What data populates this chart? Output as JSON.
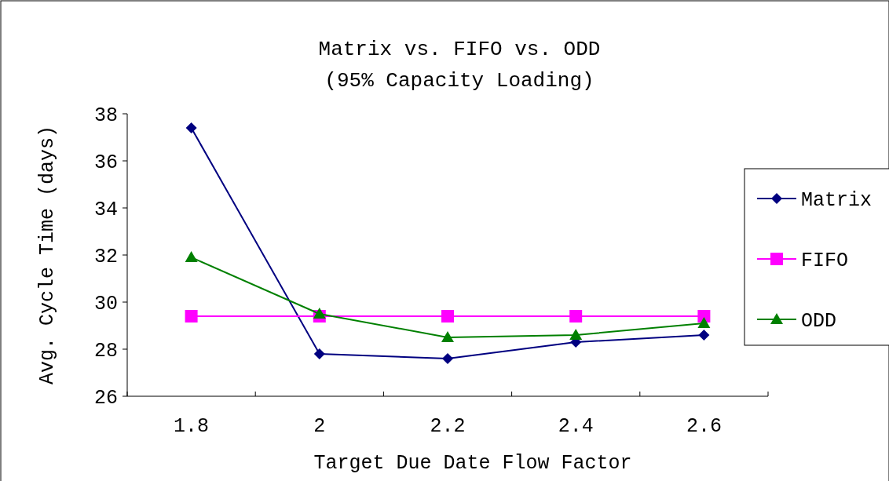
{
  "chart_data": {
    "type": "line",
    "title": "Matrix vs. FIFO vs. ODD",
    "subtitle": "(95% Capacity Loading)",
    "xlabel": "Target Due Date Flow Factor",
    "ylabel": "Avg. Cycle Time (days)",
    "categories": [
      "1.8",
      "2",
      "2.2",
      "2.4",
      "2.6"
    ],
    "ylim": [
      26,
      38
    ],
    "yticks": [
      26,
      28,
      30,
      32,
      34,
      36,
      38
    ],
    "grid": false,
    "legend": "right",
    "series": [
      {
        "name": "Matrix",
        "color": "#000080",
        "marker": "diamond",
        "values": [
          37.4,
          27.8,
          27.6,
          28.3,
          28.6
        ]
      },
      {
        "name": "FIFO",
        "color": "#ff00ff",
        "marker": "square",
        "values": [
          29.4,
          29.4,
          29.4,
          29.4,
          29.4
        ]
      },
      {
        "name": "ODD",
        "color": "#008000",
        "marker": "triangle",
        "values": [
          31.9,
          29.5,
          28.5,
          28.6,
          29.1
        ]
      }
    ]
  }
}
